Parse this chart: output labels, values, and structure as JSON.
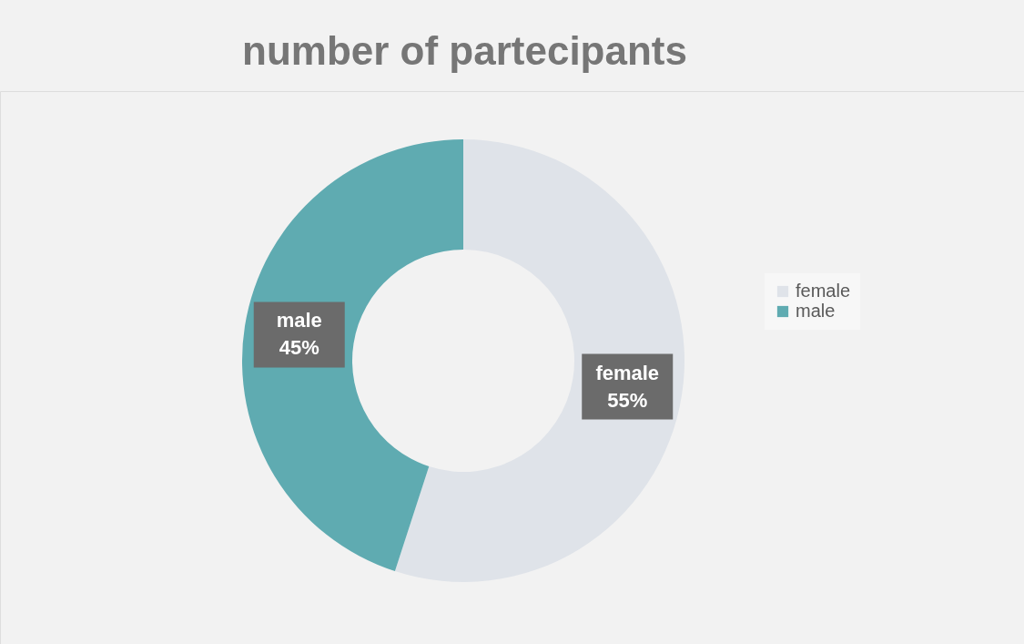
{
  "chart_data": {
    "type": "donut",
    "title": "number of partecipants",
    "categories": [
      "female",
      "male"
    ],
    "values": [
      55,
      45
    ],
    "colors": [
      "#dfe3e9",
      "#5fabb1"
    ],
    "value_labels": [
      "55%",
      "45%"
    ],
    "legend": "right"
  }
}
